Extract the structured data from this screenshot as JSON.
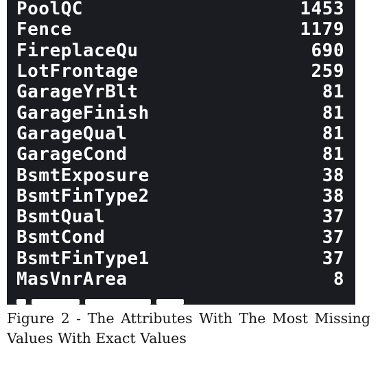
{
  "table": {
    "rows": [
      {
        "name": "PoolQC",
        "value": "1453"
      },
      {
        "name": "Fence",
        "value": "1179"
      },
      {
        "name": "FireplaceQu",
        "value": "690"
      },
      {
        "name": "LotFrontage",
        "value": "259"
      },
      {
        "name": "GarageYrBlt",
        "value": "81"
      },
      {
        "name": "GarageFinish",
        "value": "81"
      },
      {
        "name": "GarageQual",
        "value": "81"
      },
      {
        "name": "GarageCond",
        "value": "81"
      },
      {
        "name": "BsmtExposure",
        "value": "38"
      },
      {
        "name": "BsmtFinType2",
        "value": "38"
      },
      {
        "name": "BsmtQual",
        "value": "37"
      },
      {
        "name": "BsmtCond",
        "value": "37"
      },
      {
        "name": "BsmtFinType1",
        "value": "37"
      },
      {
        "name": "MasVnrArea",
        "value": "8"
      }
    ]
  },
  "caption": {
    "text": "Figure 2 - The Attributes With The Most Missing Values With Exact Values"
  }
}
